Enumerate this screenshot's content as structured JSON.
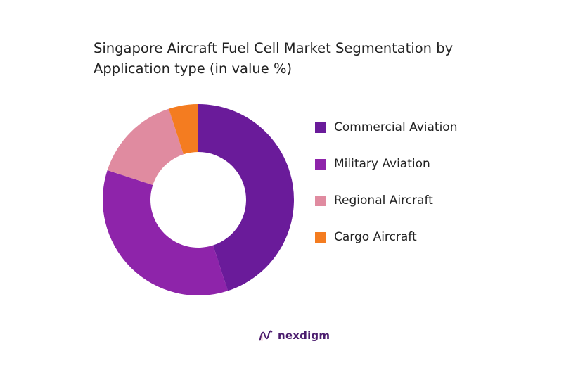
{
  "title_lines": [
    "Singapore Aircraft Fuel Cell Market Segmentation by",
    "Application type (in value %)"
  ],
  "chart_data": {
    "type": "pie",
    "donut": true,
    "title": "Singapore Aircraft Fuel Cell Market Segmentation by Application type (in value %)",
    "categories": [
      "Commercial Aviation",
      "Military Aviation",
      "Regional Aircraft",
      "Cargo Aircraft"
    ],
    "values": [
      45,
      35,
      15,
      5
    ],
    "colors": [
      "#6a1b9a",
      "#8e24aa",
      "#e08ba0",
      "#f47c20"
    ],
    "start_angle": "top",
    "direction": "clockwise",
    "legend_position": "right"
  },
  "legend": {
    "items": [
      {
        "label": "Commercial Aviation",
        "color": "#6a1b9a"
      },
      {
        "label": "Military Aviation",
        "color": "#8e24aa"
      },
      {
        "label": "Regional Aircraft",
        "color": "#e08ba0"
      },
      {
        "label": "Cargo Aircraft",
        "color": "#f47c20"
      }
    ]
  },
  "brand": {
    "name": "nexdigm",
    "icon": "nexdigm-logo-icon",
    "color": "#4b1d6e"
  }
}
